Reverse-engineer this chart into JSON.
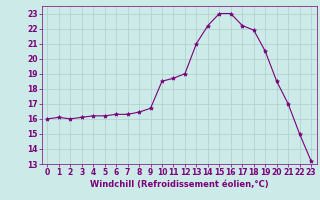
{
  "x": [
    0,
    1,
    2,
    3,
    4,
    5,
    6,
    7,
    8,
    9,
    10,
    11,
    12,
    13,
    14,
    15,
    16,
    17,
    18,
    19,
    20,
    21,
    22,
    23
  ],
  "y": [
    16.0,
    16.1,
    16.0,
    16.1,
    16.2,
    16.2,
    16.3,
    16.3,
    16.45,
    16.7,
    18.5,
    18.7,
    19.0,
    21.0,
    22.2,
    23.0,
    23.0,
    22.2,
    21.9,
    20.5,
    18.5,
    17.0,
    15.0,
    13.2
  ],
  "line_color": "#7B007B",
  "marker": "*",
  "marker_size": 3,
  "xlabel": "Windchill (Refroidissement éolien,°C)",
  "xlim": [
    -0.5,
    23.5
  ],
  "ylim": [
    13,
    23.5
  ],
  "yticks": [
    13,
    14,
    15,
    16,
    17,
    18,
    19,
    20,
    21,
    22,
    23
  ],
  "xticks": [
    0,
    1,
    2,
    3,
    4,
    5,
    6,
    7,
    8,
    9,
    10,
    11,
    12,
    13,
    14,
    15,
    16,
    17,
    18,
    19,
    20,
    21,
    22,
    23
  ],
  "bg_color": "#cceae7",
  "grid_color": "#aacfcc",
  "tick_color": "#7B007B",
  "tick_labelsize": 5.5,
  "xlabel_fontsize": 6.0,
  "linewidth": 0.8
}
